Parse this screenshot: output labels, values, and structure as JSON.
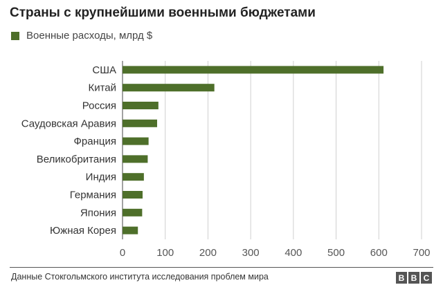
{
  "title": "Страны с крупнейшими военными бюджетами",
  "source": "Данные Стокгольмского института исследования проблем мира",
  "logo": [
    "B",
    "B",
    "C"
  ],
  "chart_data": {
    "type": "bar",
    "orientation": "horizontal",
    "categories": [
      "США",
      "Китай",
      "Россия",
      "Саудовская Аравия",
      "Франция",
      "Великобритания",
      "Индия",
      "Германия",
      "Япония",
      "Южная Корея"
    ],
    "series": [
      {
        "name": "Военные расходы, млрд $",
        "color": "#4e6f2a",
        "values": [
          611,
          215,
          84,
          81,
          61,
          59,
          50,
          47,
          46,
          36
        ]
      }
    ],
    "xlim": [
      0,
      700
    ],
    "xticks": [
      0,
      100,
      200,
      300,
      400,
      500,
      600,
      700
    ],
    "grid": true,
    "legend_position": "top-left"
  }
}
